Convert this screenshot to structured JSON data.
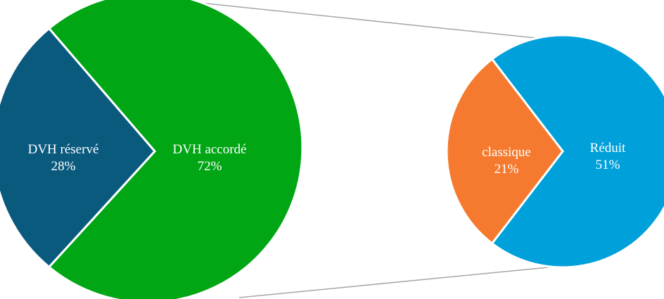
{
  "chart_data": {
    "type": "pie",
    "charts": [
      {
        "role": "main",
        "slices": [
          {
            "label": "DVH réservé",
            "value_text": "28%",
            "value": 28,
            "color": "#0a5a7e"
          },
          {
            "label": "DVH accordé",
            "value_text": "72%",
            "value": 72,
            "color": "#00a614"
          }
        ]
      },
      {
        "role": "breakdown",
        "slices": [
          {
            "label": "classique",
            "value_text": "21%",
            "value": 21,
            "color": "#f57a2f"
          },
          {
            "label": "Réduit",
            "value_text": "51%",
            "value": 51,
            "color": "#00a1da"
          }
        ]
      }
    ],
    "connector_color": "#a6a6a6",
    "separator_color": "#ffffff"
  }
}
